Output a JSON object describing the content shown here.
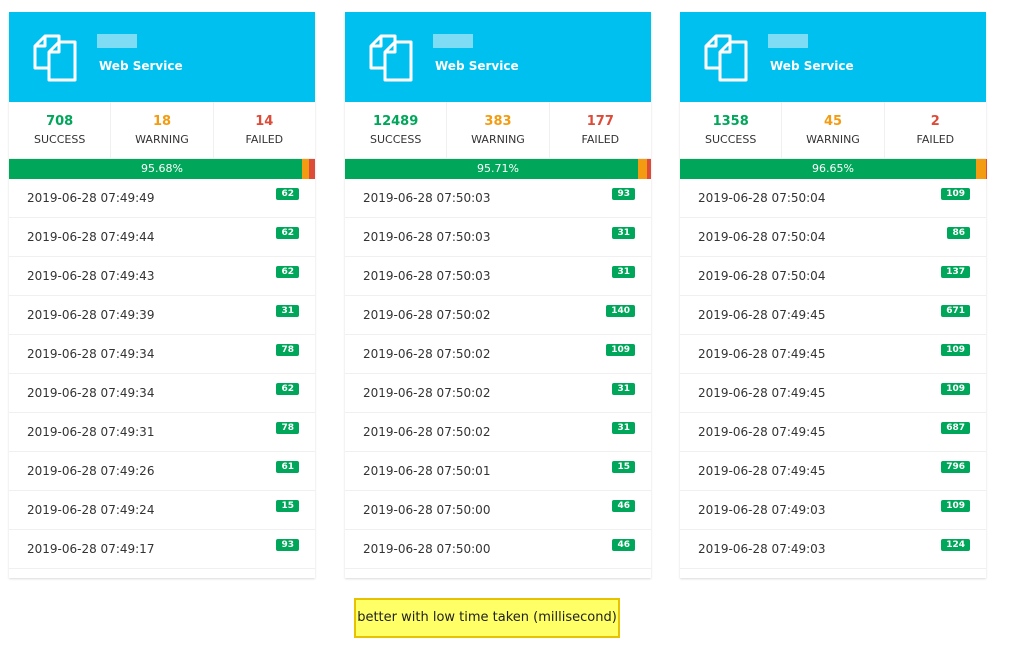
{
  "cards": [
    {
      "title": "Web Service",
      "stats": [
        {
          "count": 708,
          "label": "SUCCESS"
        },
        {
          "count": 18,
          "label": "WARNING"
        },
        {
          "count": 14,
          "label": "FAILED"
        }
      ],
      "success_rate": "95.68%",
      "rows": [
        {
          "time": "2019-06-28 07:49:49",
          "ms": 62
        },
        {
          "time": "2019-06-28 07:49:44",
          "ms": 62
        },
        {
          "time": "2019-06-28 07:49:43",
          "ms": 62
        },
        {
          "time": "2019-06-28 07:49:39",
          "ms": 31
        },
        {
          "time": "2019-06-28 07:49:34",
          "ms": 78
        },
        {
          "time": "2019-06-28 07:49:34",
          "ms": 62
        },
        {
          "time": "2019-06-28 07:49:31",
          "ms": 78
        },
        {
          "time": "2019-06-28 07:49:26",
          "ms": 61
        },
        {
          "time": "2019-06-28 07:49:24",
          "ms": 15
        },
        {
          "time": "2019-06-28 07:49:17",
          "ms": 93
        }
      ]
    },
    {
      "title": "Web Service",
      "stats": [
        {
          "count": 12489,
          "label": "SUCCESS"
        },
        {
          "count": 383,
          "label": "WARNING"
        },
        {
          "count": 177,
          "label": "FAILED"
        }
      ],
      "success_rate": "95.71%",
      "rows": [
        {
          "time": "2019-06-28 07:50:03",
          "ms": 93
        },
        {
          "time": "2019-06-28 07:50:03",
          "ms": 31
        },
        {
          "time": "2019-06-28 07:50:03",
          "ms": 31
        },
        {
          "time": "2019-06-28 07:50:02",
          "ms": 140
        },
        {
          "time": "2019-06-28 07:50:02",
          "ms": 109
        },
        {
          "time": "2019-06-28 07:50:02",
          "ms": 31
        },
        {
          "time": "2019-06-28 07:50:02",
          "ms": 31
        },
        {
          "time": "2019-06-28 07:50:01",
          "ms": 15
        },
        {
          "time": "2019-06-28 07:50:00",
          "ms": 46
        },
        {
          "time": "2019-06-28 07:50:00",
          "ms": 46
        }
      ]
    },
    {
      "title": "Web Service",
      "stats": [
        {
          "count": 1358,
          "label": "SUCCESS"
        },
        {
          "count": 45,
          "label": "WARNING"
        },
        {
          "count": 2,
          "label": "FAILED"
        }
      ],
      "success_rate": "96.65%",
      "rows": [
        {
          "time": "2019-06-28 07:50:04",
          "ms": 109
        },
        {
          "time": "2019-06-28 07:50:04",
          "ms": 86
        },
        {
          "time": "2019-06-28 07:50:04",
          "ms": 137
        },
        {
          "time": "2019-06-28 07:49:45",
          "ms": 671
        },
        {
          "time": "2019-06-28 07:49:45",
          "ms": 109
        },
        {
          "time": "2019-06-28 07:49:45",
          "ms": 109
        },
        {
          "time": "2019-06-28 07:49:45",
          "ms": 687
        },
        {
          "time": "2019-06-28 07:49:45",
          "ms": 796
        },
        {
          "time": "2019-06-28 07:49:03",
          "ms": 109
        },
        {
          "time": "2019-06-28 07:49:03",
          "ms": 124
        }
      ]
    }
  ],
  "note": "better with low time taken (millisecond)"
}
